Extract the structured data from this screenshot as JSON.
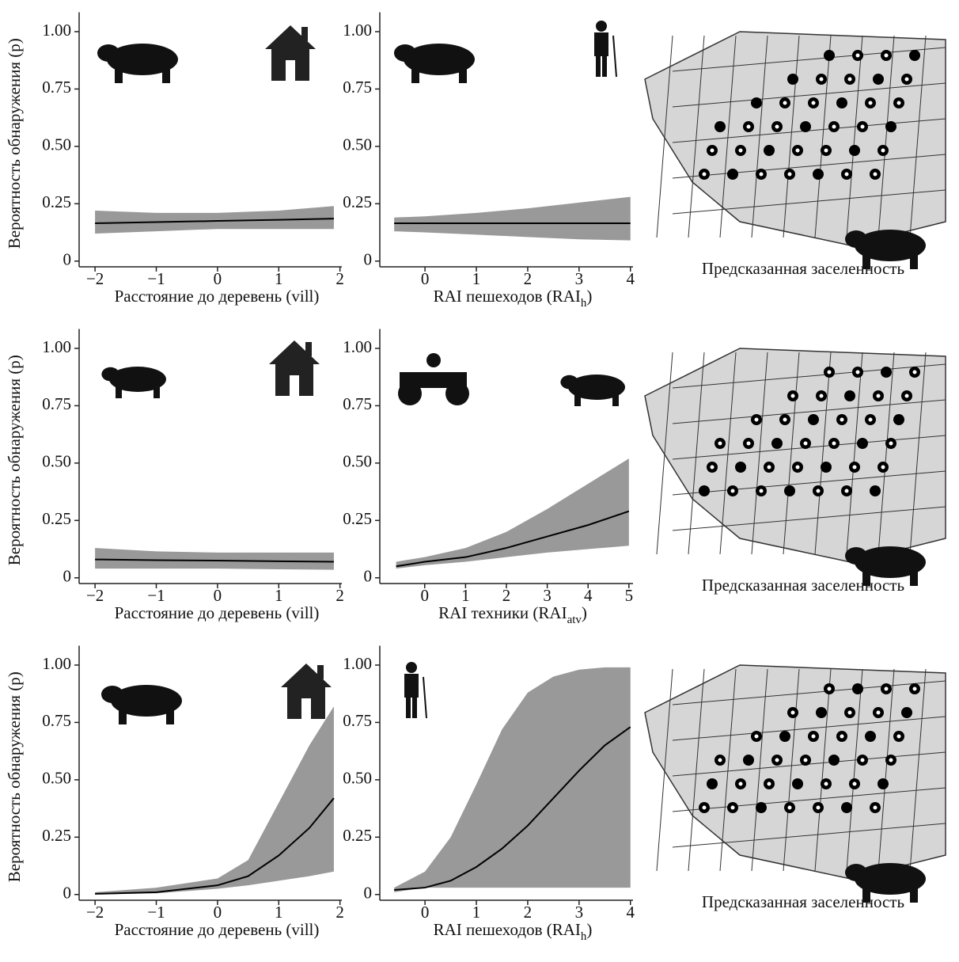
{
  "chart_data": [
    {
      "type": "line",
      "ylabel": "Вероятность обнаружения (p)",
      "xlabel": [
        "Расстояние до деревень (vill)"
      ],
      "xlim": [
        -2.26,
        2.03
      ],
      "xticks": [
        -2,
        -1,
        0,
        1,
        2
      ],
      "ylim": [
        -0.025,
        1.05
      ],
      "yticks": [
        0,
        0.25,
        {
          "value": 0.5,
          "label": "0.50"
        },
        0.75,
        {
          "value": 1,
          "label": "1.00"
        }
      ],
      "x": [
        -2,
        -1,
        0,
        1,
        1.9
      ],
      "values": [
        0.165,
        0.17,
        0.175,
        0.18,
        0.185
      ],
      "lower": [
        0.12,
        0.13,
        0.14,
        0.14,
        0.14
      ],
      "upper": [
        0.22,
        0.21,
        0.21,
        0.22,
        0.24
      ],
      "color": "#000000",
      "band_color": "#999999"
    },
    {
      "type": "line",
      "xlabel": [
        "RAI пешеходов (RAI",
        "h",
        ")"
      ],
      "xlim": [
        -0.88,
        4.05
      ],
      "xticks": [
        0,
        1,
        2,
        3,
        4
      ],
      "ylim": [
        -0.025,
        1.05
      ],
      "yticks": [
        0,
        0.25,
        {
          "value": 0.5,
          "label": "0.50"
        },
        0.75,
        {
          "value": 1,
          "label": "1.00"
        }
      ],
      "x": [
        -0.6,
        0,
        1,
        2,
        3,
        4
      ],
      "values": [
        0.165,
        0.165,
        0.165,
        0.165,
        0.165,
        0.165
      ],
      "lower": [
        0.13,
        0.125,
        0.115,
        0.105,
        0.095,
        0.09
      ],
      "upper": [
        0.19,
        0.195,
        0.21,
        0.23,
        0.255,
        0.28
      ],
      "color": "#000000",
      "band_color": "#999999"
    },
    {
      "type": "line",
      "ylabel": "Вероятность обнаружения (p)",
      "xlabel": [
        "Расстояние до деревень (vill)"
      ],
      "xlim": [
        -2.26,
        2.03
      ],
      "xticks": [
        -2,
        -1,
        0,
        1,
        2
      ],
      "ylim": [
        -0.025,
        1.05
      ],
      "yticks": [
        0,
        0.25,
        {
          "value": 0.5,
          "label": "0.50"
        },
        0.75,
        {
          "value": 1,
          "label": "1.00"
        }
      ],
      "x": [
        -2,
        -1,
        0,
        1,
        1.9
      ],
      "values": [
        0.08,
        0.077,
        0.075,
        0.072,
        0.07
      ],
      "lower": [
        0.04,
        0.04,
        0.04,
        0.037,
        0.035
      ],
      "upper": [
        0.13,
        0.115,
        0.11,
        0.11,
        0.11
      ],
      "color": "#000000",
      "band_color": "#999999"
    },
    {
      "type": "line",
      "xlabel": [
        "RAI техники (RAI",
        "atv",
        ")"
      ],
      "xlim": [
        -1.1,
        5.1
      ],
      "xticks": [
        0,
        1,
        2,
        3,
        4,
        5
      ],
      "ylim": [
        -0.025,
        1.05
      ],
      "yticks": [
        0,
        0.25,
        {
          "value": 0.5,
          "label": "0.50"
        },
        0.75,
        {
          "value": 1,
          "label": "1.00"
        }
      ],
      "x": [
        -0.7,
        0,
        1,
        2,
        3,
        4,
        5
      ],
      "values": [
        0.05,
        0.07,
        0.09,
        0.13,
        0.18,
        0.23,
        0.29
      ],
      "lower": [
        0.04,
        0.055,
        0.07,
        0.09,
        0.11,
        0.125,
        0.14
      ],
      "upper": [
        0.07,
        0.09,
        0.13,
        0.2,
        0.3,
        0.41,
        0.52
      ],
      "color": "#000000",
      "band_color": "#999999"
    },
    {
      "type": "line",
      "ylabel": "Вероятность обнаружения (p)",
      "xlabel": [
        "Расстояние до деревень (vill)"
      ],
      "xlim": [
        -2.26,
        2.03
      ],
      "xticks": [
        -2,
        -1,
        0,
        1,
        2
      ],
      "ylim": [
        -0.025,
        1.05
      ],
      "yticks": [
        0,
        0.25,
        {
          "value": 0.5,
          "label": "0.50"
        },
        0.75,
        {
          "value": 1,
          "label": "1.00"
        }
      ],
      "x": [
        -2,
        -1,
        0,
        0.5,
        1,
        1.5,
        1.9
      ],
      "values": [
        0.003,
        0.01,
        0.04,
        0.08,
        0.17,
        0.29,
        0.42
      ],
      "lower": [
        0,
        0.005,
        0.025,
        0.04,
        0.06,
        0.08,
        0.1
      ],
      "upper": [
        0.01,
        0.03,
        0.07,
        0.15,
        0.4,
        0.65,
        0.82
      ],
      "color": "#000000",
      "band_color": "#999999"
    },
    {
      "type": "line",
      "xlabel": [
        "RAI пешеходов (RAI",
        "h",
        ")"
      ],
      "xlim": [
        -0.88,
        4.05
      ],
      "xticks": [
        0,
        1,
        2,
        3,
        4
      ],
      "ylim": [
        -0.025,
        1.05
      ],
      "yticks": [
        0,
        0.25,
        {
          "value": 0.5,
          "label": "0.50"
        },
        0.75,
        {
          "value": 1,
          "label": "1.00"
        }
      ],
      "x": [
        -0.6,
        0,
        0.5,
        1,
        1.5,
        2,
        2.5,
        3,
        3.5,
        4
      ],
      "values": [
        0.02,
        0.03,
        0.06,
        0.12,
        0.2,
        0.3,
        0.42,
        0.54,
        0.65,
        0.73
      ],
      "lower": [
        0.01,
        0.03,
        0.03,
        0.03,
        0.03,
        0.03,
        0.03,
        0.03,
        0.03,
        0.03
      ],
      "upper": [
        0.03,
        0.1,
        0.25,
        0.48,
        0.72,
        0.88,
        0.95,
        0.98,
        0.99,
        0.99
      ],
      "color": "#000000",
      "band_color": "#999999"
    }
  ],
  "maps": [
    {
      "caption": "Предсказанная заселенность"
    },
    {
      "caption": "Предсказанная заселенность"
    },
    {
      "caption": "Предсказанная заселенность"
    }
  ]
}
